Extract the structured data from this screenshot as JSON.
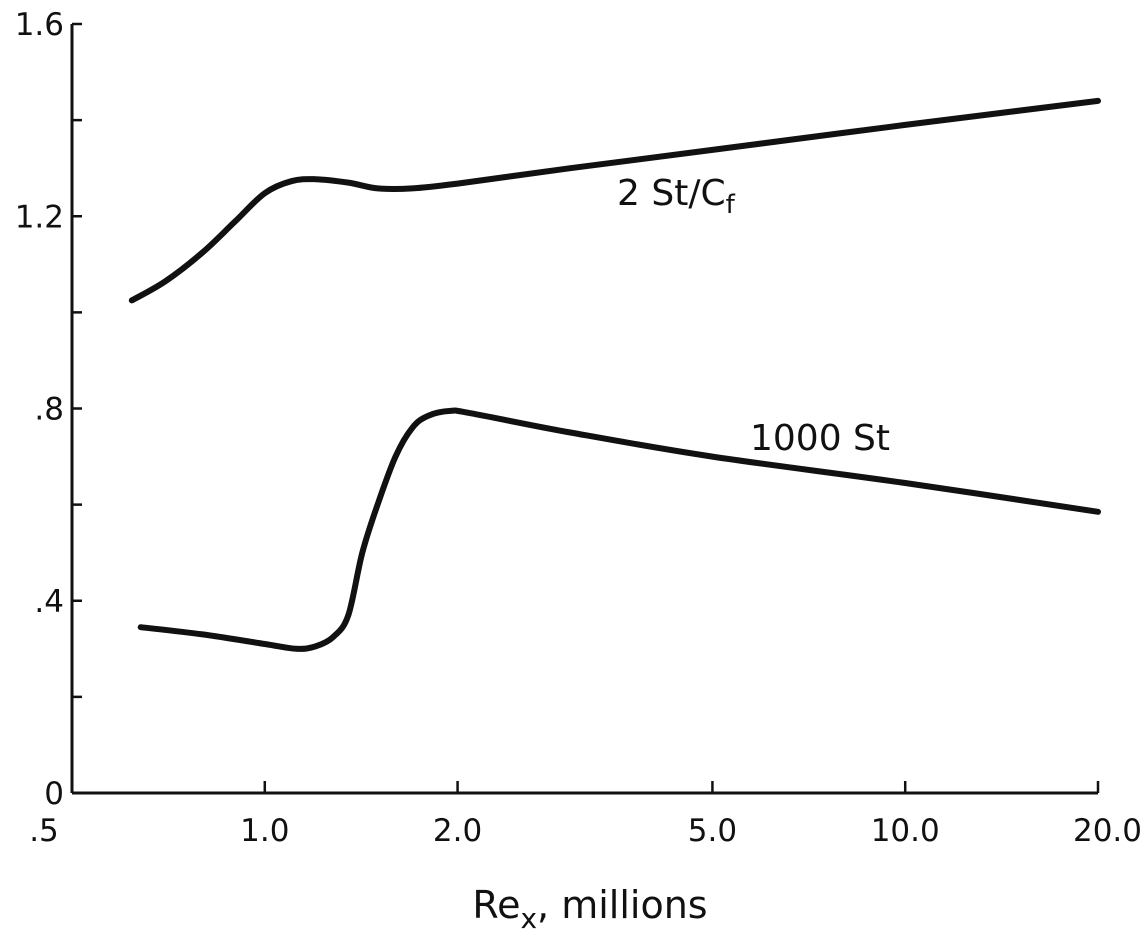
{
  "chart_data": {
    "type": "line",
    "title": "",
    "xscale": "log",
    "xlim": [
      0.5,
      20.0
    ],
    "ylim": [
      0,
      1.6
    ],
    "grid": false,
    "x_ticks": [
      0.5,
      1.0,
      2.0,
      5.0,
      10.0,
      20.0
    ],
    "x_tick_labels": [
      ".5",
      "1.0",
      "2.0",
      "5.0",
      "10.0",
      "20.0"
    ],
    "y_ticks": [
      0,
      0.2,
      0.4,
      0.6,
      0.8,
      1.0,
      1.2,
      1.4,
      1.6
    ],
    "y_tick_labels": [
      "0",
      "",
      ".4",
      "",
      ".8",
      "",
      "1.2",
      "",
      "1.6"
    ],
    "xlabel_main": "Re",
    "xlabel_sub": "x",
    "xlabel_rest": ", millions",
    "ylabel": "",
    "series": [
      {
        "name": "2 St/C",
        "name_sub": "f",
        "x": [
          0.62,
          0.7,
          0.8,
          0.9,
          1.0,
          1.1,
          1.2,
          1.35,
          1.5,
          1.7,
          2.0,
          3.0,
          5.0,
          10.0,
          20.0
        ],
        "y": [
          1.025,
          1.065,
          1.125,
          1.19,
          1.248,
          1.273,
          1.277,
          1.27,
          1.258,
          1.258,
          1.268,
          1.3,
          1.338,
          1.39,
          1.44
        ]
      },
      {
        "name": "1000 St",
        "x": [
          0.64,
          0.8,
          1.0,
          1.12,
          1.2,
          1.28,
          1.35,
          1.42,
          1.5,
          1.6,
          1.7,
          1.8,
          1.95,
          2.1,
          3.0,
          5.0,
          10.0,
          20.0
        ],
        "y": [
          0.345,
          0.33,
          0.31,
          0.3,
          0.305,
          0.325,
          0.37,
          0.5,
          0.6,
          0.7,
          0.76,
          0.785,
          0.795,
          0.79,
          0.75,
          0.7,
          0.645,
          0.585
        ]
      }
    ]
  }
}
